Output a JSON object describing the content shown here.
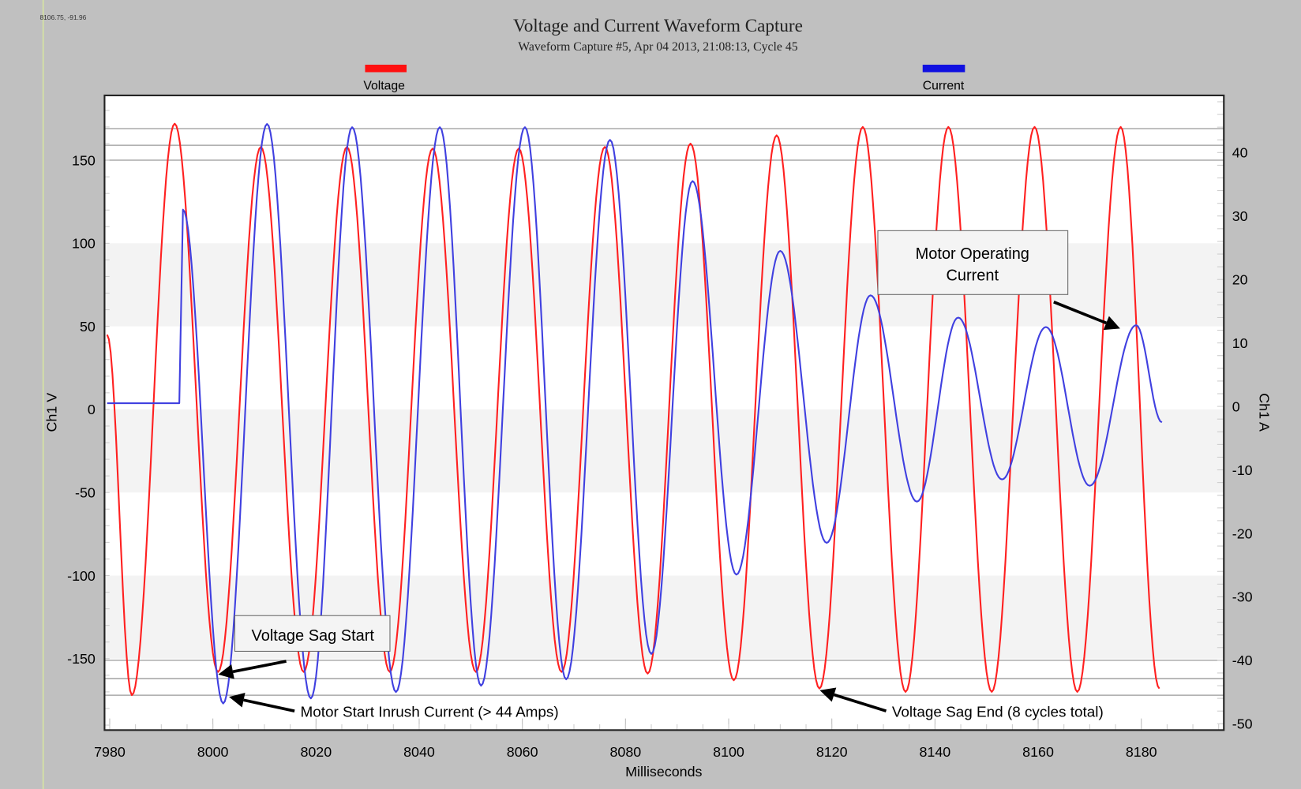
{
  "chart_data": {
    "type": "line",
    "title": "Voltage and Current Waveform Capture",
    "subtitle": "Waveform Capture #5, Apr 04 2013, 21:08:13,  Cycle 45",
    "cursor_readout": "8106.75, -91.96",
    "xlabel": "Milliseconds",
    "ylabel_left": "Ch1 V",
    "ylabel_right": "Ch1 A",
    "xlim": [
      7979,
      8196
    ],
    "ylim_left": [
      -193,
      189
    ],
    "ylim_right": [
      -51,
      49
    ],
    "x_ticks": [
      "7980",
      "8000",
      "8020",
      "8040",
      "8060",
      "8080",
      "8100",
      "8120",
      "8140",
      "8160",
      "8180"
    ],
    "y_left_ticks": [
      "150",
      "100",
      "50",
      "0",
      "-50",
      "-100",
      "-150"
    ],
    "y_right_ticks": [
      "40",
      "30",
      "20",
      "10",
      "0",
      "-10",
      "-20",
      "-30",
      "-40",
      "-50"
    ],
    "legend_placement": "top",
    "reference_lines_volts": [
      169,
      159,
      150,
      -151,
      -162,
      -172
    ],
    "series": [
      {
        "name": "Voltage",
        "axis": "left",
        "color": "#ff2020",
        "extrema": [
          [
            7979.5,
            45
          ],
          [
            7984.3,
            -172
          ],
          [
            7992.6,
            172
          ],
          [
            8001,
            -158
          ],
          [
            8009.3,
            158
          ],
          [
            8017.6,
            -158
          ],
          [
            8026,
            158
          ],
          [
            8034.3,
            -158
          ],
          [
            8042.6,
            157
          ],
          [
            8051,
            -158
          ],
          [
            8059.3,
            157
          ],
          [
            8067.6,
            -158
          ],
          [
            8076,
            158
          ],
          [
            8084.3,
            -159
          ],
          [
            8092.6,
            160
          ],
          [
            8101,
            -163
          ],
          [
            8109.3,
            165
          ],
          [
            8117.6,
            -168
          ],
          [
            8126,
            170
          ],
          [
            8134.3,
            -170
          ],
          [
            8142.6,
            170
          ],
          [
            8151,
            -170
          ],
          [
            8159.3,
            170
          ],
          [
            8167.6,
            -170
          ],
          [
            8176,
            170
          ],
          [
            8183.5,
            -168
          ]
        ]
      },
      {
        "name": "Current",
        "axis": "right",
        "color": "#4040e0",
        "extrema": [
          [
            7979.5,
            0.5
          ],
          [
            7993.5,
            0.5
          ],
          [
            7994.2,
            31
          ],
          [
            8002,
            -46.8
          ],
          [
            8010.5,
            44.5
          ],
          [
            8019,
            -46
          ],
          [
            8027,
            44
          ],
          [
            8035.5,
            -45
          ],
          [
            8044,
            44
          ],
          [
            8052,
            -44
          ],
          [
            8060.5,
            44
          ],
          [
            8068.5,
            -43
          ],
          [
            8077,
            42
          ],
          [
            8085,
            -39
          ],
          [
            8093,
            35.5
          ],
          [
            8101.5,
            -26.5
          ],
          [
            8110,
            24.5
          ],
          [
            8119,
            -21.5
          ],
          [
            8127.5,
            17.5
          ],
          [
            8136.5,
            -15
          ],
          [
            8144.5,
            14
          ],
          [
            8153,
            -11.5
          ],
          [
            8161.5,
            12.5
          ],
          [
            8170,
            -12.5
          ],
          [
            8179,
            12.8
          ],
          [
            8184,
            -2.5
          ]
        ]
      }
    ],
    "annotations": {
      "sag_start": "Voltage Sag Start",
      "inrush": "Motor Start Inrush Current (> 44 Amps)",
      "sag_end": "Voltage Sag End (8 cycles total)",
      "operating_line1": "Motor Operating",
      "operating_line2": "Current"
    }
  }
}
